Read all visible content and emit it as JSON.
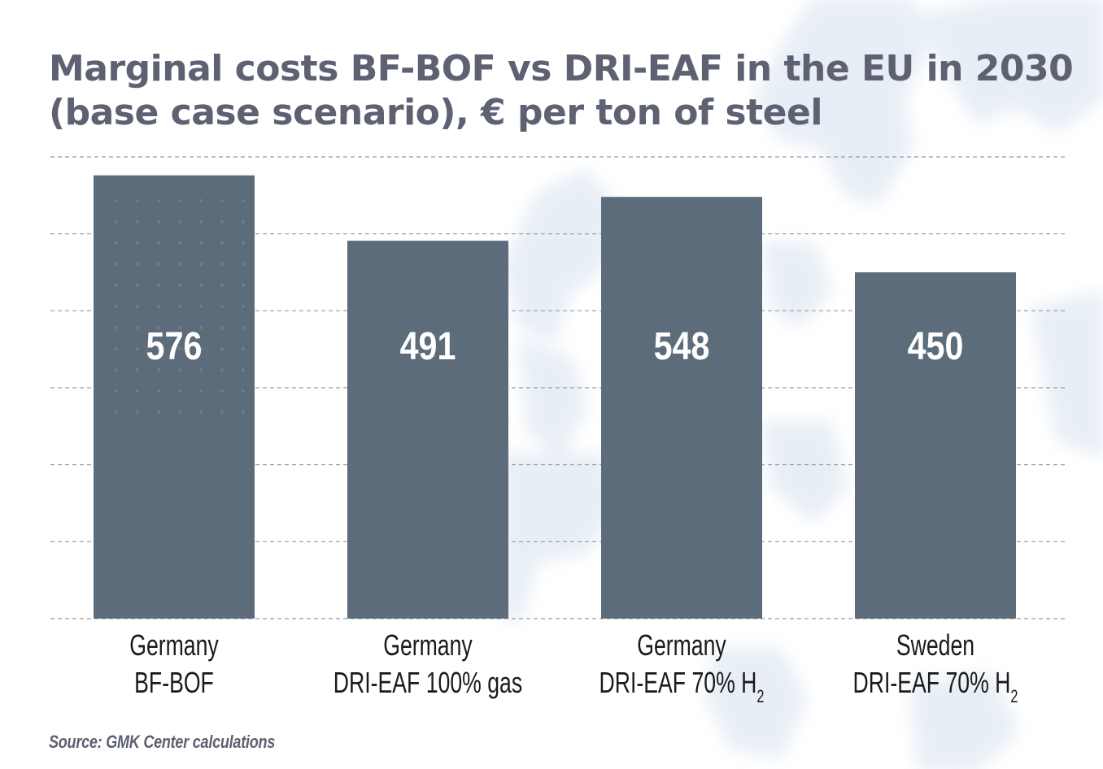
{
  "title": {
    "line1": "Marginal costs BF-BOF vs DRI-EAF in the EU in 2030",
    "line2": "(base case scenario), € per ton of steel"
  },
  "source": "Source: GMK Center calculations",
  "colors": {
    "bar": "#5d6c7a",
    "title": "#5e6172",
    "grid": "#9a9a9a",
    "value_label": "#ffffff",
    "category_label": "#1a1a1a"
  },
  "chart_data": {
    "type": "bar",
    "title": "Marginal costs BF-BOF vs DRI-EAF in the EU in 2030 (base case scenario), € per ton of steel",
    "categories": [
      {
        "line1": "Germany",
        "line2": "BF-BOF",
        "sub": ""
      },
      {
        "line1": "Germany",
        "line2": "DRI-EAF 100% gas",
        "sub": ""
      },
      {
        "line1": "Germany",
        "line2": "DRI-EAF 70% H",
        "sub": "2"
      },
      {
        "line1": "Sweden",
        "line2": "DRI-EAF 70% H",
        "sub": "2"
      }
    ],
    "values": [
      576,
      491,
      548,
      450
    ],
    "ylim": [
      0,
      600
    ],
    "gridlines": [
      0,
      100,
      200,
      300,
      400,
      500,
      600
    ],
    "grid": true,
    "legend": "none",
    "xlabel": "",
    "ylabel": ""
  }
}
